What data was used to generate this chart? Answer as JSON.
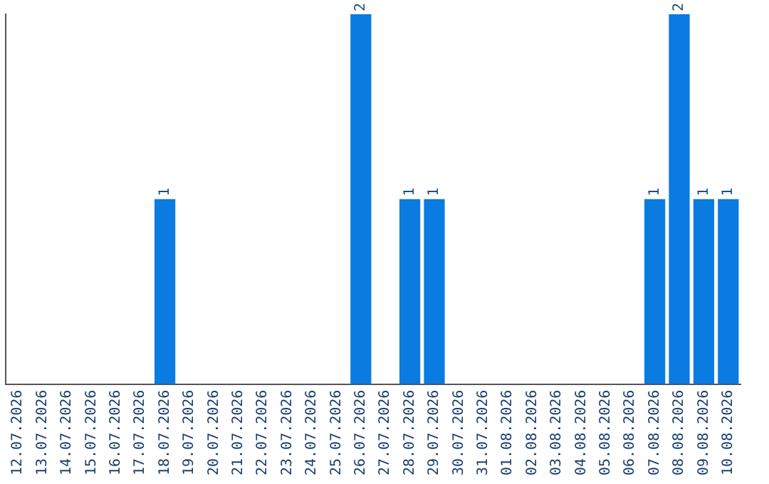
{
  "chart_data": {
    "type": "bar",
    "categories": [
      "12.07.2026",
      "13.07.2026",
      "14.07.2026",
      "15.07.2026",
      "16.07.2026",
      "17.07.2026",
      "18.07.2026",
      "19.07.2026",
      "20.07.2026",
      "21.07.2026",
      "22.07.2026",
      "23.07.2026",
      "24.07.2026",
      "25.07.2026",
      "26.07.2026",
      "27.07.2026",
      "28.07.2026",
      "29.07.2026",
      "30.07.2026",
      "31.07.2026",
      "01.08.2026",
      "02.08.2026",
      "03.08.2026",
      "04.08.2026",
      "05.08.2026",
      "06.08.2026",
      "07.08.2026",
      "08.08.2026",
      "09.08.2026",
      "10.08.2026"
    ],
    "values": [
      0,
      0,
      0,
      0,
      0,
      0,
      1,
      0,
      0,
      0,
      0,
      0,
      0,
      0,
      2,
      0,
      1,
      1,
      0,
      0,
      0,
      0,
      0,
      0,
      0,
      0,
      1,
      2,
      1,
      1
    ],
    "value_labels": [
      null,
      null,
      null,
      null,
      null,
      null,
      "1",
      null,
      null,
      null,
      null,
      null,
      null,
      null,
      "2",
      null,
      "1",
      "1",
      null,
      null,
      null,
      null,
      null,
      null,
      null,
      null,
      "1",
      "2",
      "1",
      "1"
    ],
    "color": "#0a7be0",
    "ylim": [
      0,
      2
    ],
    "tick_labels": "x",
    "grid": false,
    "legend": false
  }
}
